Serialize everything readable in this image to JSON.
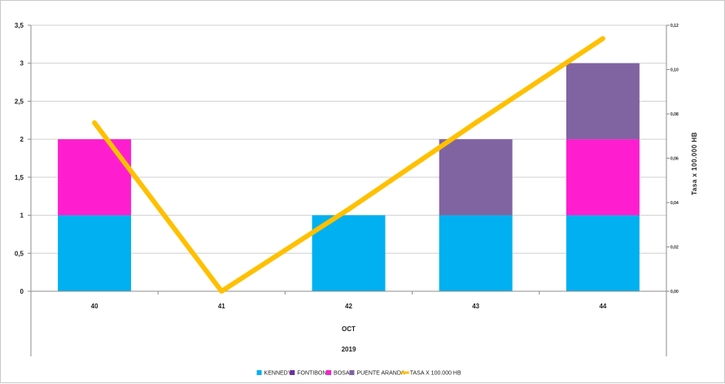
{
  "chart_data": {
    "type": "bar",
    "stacked": true,
    "categories": [
      "40",
      "41",
      "42",
      "43",
      "44"
    ],
    "x_group_labels": [
      "OCT",
      "2019"
    ],
    "series": [
      {
        "name": "KENNEDY",
        "values": [
          1,
          0,
          1,
          1,
          1
        ],
        "color": "#00B0F0"
      },
      {
        "name": "FONTIBON",
        "values": [
          0,
          0,
          0,
          0,
          0
        ],
        "color": "#7030A0"
      },
      {
        "name": "BOSA",
        "values": [
          1,
          0,
          0,
          0,
          1
        ],
        "color": "#FF1ECF"
      },
      {
        "name": "PUENTE ARANDA",
        "values": [
          0,
          0,
          0,
          1,
          1
        ],
        "color": "#8064A2"
      }
    ],
    "line_series": {
      "name": "TASA X 100.000 HB",
      "values": [
        0.076,
        0.0,
        0.037,
        0.076,
        0.114
      ],
      "color": "#FFC000",
      "axis": "right"
    },
    "ylim": [
      0,
      3.5
    ],
    "yticks": [
      "0",
      "0,5",
      "1",
      "1,5",
      "2",
      "2,5",
      "3",
      "3,5"
    ],
    "y2lim": [
      0,
      0.12
    ],
    "y2ticks": [
      "0,00",
      "0,02",
      "0,04",
      "0,06",
      "0,08",
      "0,10",
      "0,12"
    ],
    "y2label": "Tasa x 100.000 HB",
    "xlabel": "",
    "ylabel": "",
    "grid": true,
    "legend_position": "bottom"
  }
}
